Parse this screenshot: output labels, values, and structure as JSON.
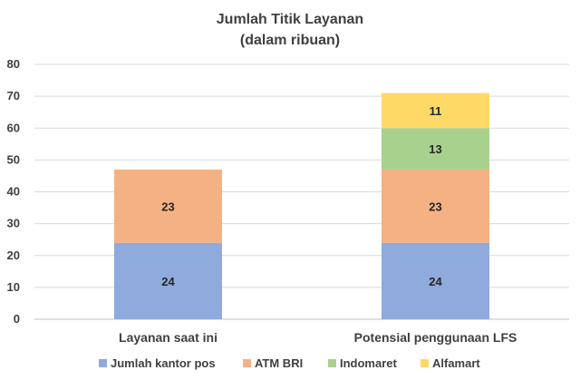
{
  "chart_data": {
    "type": "bar",
    "stacked": true,
    "title": "Jumlah Titik Layanan",
    "subtitle": "(dalam ribuan)",
    "categories": [
      "Layanan saat ini",
      "Potensial penggunaan LFS"
    ],
    "series": [
      {
        "name": "Jumlah kantor pos",
        "color": "#8FAADC",
        "values": [
          24,
          24
        ]
      },
      {
        "name": "ATM BRI",
        "color": "#F4B183",
        "values": [
          23,
          23
        ]
      },
      {
        "name": "Indomaret",
        "color": "#A9D18E",
        "values": [
          null,
          13
        ]
      },
      {
        "name": "Alfamart",
        "color": "#FFD966",
        "values": [
          null,
          11
        ]
      }
    ],
    "ylim": [
      0,
      80
    ],
    "yticks": [
      0,
      10,
      20,
      30,
      40,
      50,
      60,
      70,
      80
    ],
    "grid": true,
    "legend_position": "bottom"
  }
}
